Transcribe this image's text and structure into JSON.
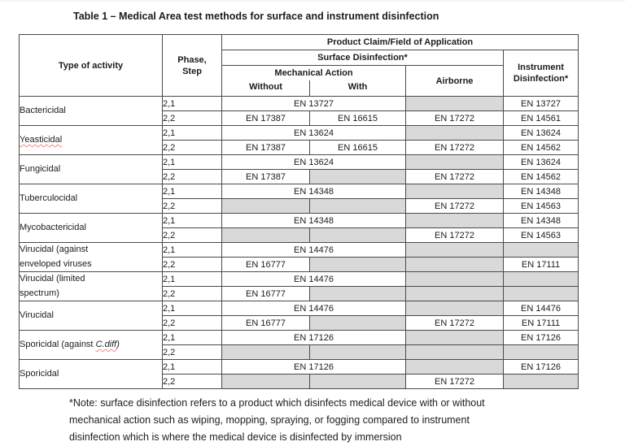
{
  "page": {
    "title": "Table 1 – Medical Area test methods for surface and instrument disinfection"
  },
  "colors": {
    "shaded_cell": "#d9d9d9",
    "border": "#4a4a4a",
    "squiggle": "#f08a7e"
  },
  "header": {
    "type_of_activity": "Type of activity",
    "phase_line1": "Phase,",
    "phase_line2": "Step",
    "product_claim": "Product Claim/Field of Application",
    "surface": "Surface Disinfection*",
    "mechanical": "Mechanical Action",
    "without": "Without",
    "with": "With",
    "airborne": "Airborne",
    "instrument_line1": "Instrument",
    "instrument_line2": "Disinfection*"
  },
  "groups": [
    {
      "activity": [
        [
          {
            "t": "Bactericidal"
          }
        ]
      ],
      "rows": [
        {
          "phase": "2,1",
          "cells": [
            {
              "t": "EN 13727",
              "span": 2
            },
            {
              "sh": true
            },
            {
              "t": "EN 13727"
            }
          ]
        },
        {
          "phase": "2,2",
          "cells": [
            {
              "t": "EN 17387"
            },
            {
              "t": "EN 16615"
            },
            {
              "t": "EN 17272"
            },
            {
              "t": "EN 14561"
            }
          ]
        }
      ]
    },
    {
      "activity": [
        [
          {
            "t": "Yeasticidal",
            "squiggle": true
          }
        ]
      ],
      "rows": [
        {
          "phase": "2,1",
          "cells": [
            {
              "t": "EN 13624",
              "span": 2
            },
            {
              "sh": true
            },
            {
              "t": "EN 13624"
            }
          ]
        },
        {
          "phase": "2,2",
          "cells": [
            {
              "t": "EN 17387"
            },
            {
              "t": "EN 16615"
            },
            {
              "t": "EN 17272"
            },
            {
              "t": "EN 14562"
            }
          ]
        }
      ]
    },
    {
      "activity": [
        [
          {
            "t": "Fungicidal"
          }
        ]
      ],
      "rows": [
        {
          "phase": "2,1",
          "cells": [
            {
              "t": "EN 13624",
              "span": 2
            },
            {
              "sh": true
            },
            {
              "t": "EN 13624"
            }
          ]
        },
        {
          "phase": "2,2",
          "cells": [
            {
              "t": "EN 17387"
            },
            {
              "sh": true
            },
            {
              "t": "EN 17272"
            },
            {
              "t": "EN 14562"
            }
          ]
        }
      ]
    },
    {
      "activity": [
        [
          {
            "t": "Tuberculocidal"
          }
        ]
      ],
      "rows": [
        {
          "phase": "2,1",
          "cells": [
            {
              "t": "EN 14348",
              "span": 2
            },
            {
              "sh": true
            },
            {
              "t": "EN 14348"
            }
          ]
        },
        {
          "phase": "2,2",
          "cells": [
            {
              "sh": true
            },
            {
              "sh": true
            },
            {
              "t": "EN 17272"
            },
            {
              "t": "EN 14563"
            }
          ]
        }
      ]
    },
    {
      "activity": [
        [
          {
            "t": "Mycobactericidal"
          }
        ]
      ],
      "rows": [
        {
          "phase": "2,1",
          "cells": [
            {
              "t": "EN 14348",
              "span": 2
            },
            {
              "sh": true
            },
            {
              "t": "EN 14348"
            }
          ]
        },
        {
          "phase": "2,2",
          "cells": [
            {
              "sh": true
            },
            {
              "sh": true
            },
            {
              "t": "EN 17272"
            },
            {
              "t": "EN 14563"
            }
          ]
        }
      ]
    },
    {
      "activity": [
        [
          {
            "t": "Virucidal (against"
          }
        ],
        [
          {
            "t": "enveloped viruses"
          }
        ]
      ],
      "rows": [
        {
          "phase": "2,1",
          "cells": [
            {
              "t": "EN 14476",
              "span": 2
            },
            {
              "sh": true
            },
            {
              "sh": true
            }
          ]
        },
        {
          "phase": "2,2",
          "cells": [
            {
              "t": "EN 16777"
            },
            {
              "sh": true
            },
            {
              "sh": true
            },
            {
              "t": "EN 17111"
            }
          ]
        }
      ]
    },
    {
      "activity": [
        [
          {
            "t": "Virucidal (limited"
          }
        ],
        [
          {
            "t": "spectrum)"
          }
        ]
      ],
      "rows": [
        {
          "phase": "2,1",
          "cells": [
            {
              "t": "EN 14476",
              "span": 2
            },
            {
              "sh": true
            },
            {
              "sh": true
            }
          ]
        },
        {
          "phase": "2,2",
          "cells": [
            {
              "t": "EN 16777"
            },
            {
              "sh": true
            },
            {
              "sh": true
            },
            {
              "sh": true
            }
          ]
        }
      ]
    },
    {
      "activity": [
        [
          {
            "t": "Virucidal"
          }
        ]
      ],
      "rows": [
        {
          "phase": "2,1",
          "cells": [
            {
              "t": "EN 14476",
              "span": 2
            },
            {
              "sh": true
            },
            {
              "t": "EN 14476"
            }
          ]
        },
        {
          "phase": "2,2",
          "cells": [
            {
              "t": "EN 16777"
            },
            {
              "sh": true
            },
            {
              "t": "EN 17272"
            },
            {
              "t": "EN 17111"
            }
          ]
        }
      ]
    },
    {
      "activity": [
        [
          {
            "t": "Sporicidal (against "
          },
          {
            "t": "C.diff",
            "italic": true,
            "squiggle": true
          },
          {
            "t": ")",
            "italic": true
          }
        ]
      ],
      "rows": [
        {
          "phase": "2,1",
          "cells": [
            {
              "t": "EN 17126",
              "span": 2
            },
            {
              "sh": true
            },
            {
              "t": "EN 17126"
            }
          ]
        },
        {
          "phase": "2,2",
          "cells": [
            {
              "sh": true
            },
            {
              "sh": true
            },
            {
              "sh": true
            },
            {
              "sh": true
            }
          ]
        }
      ]
    },
    {
      "activity": [
        [
          {
            "t": "Sporicidal"
          }
        ]
      ],
      "rows": [
        {
          "phase": "2,1",
          "cells": [
            {
              "t": "EN 17126",
              "span": 2
            },
            {
              "sh": true
            },
            {
              "t": "EN 17126"
            }
          ]
        },
        {
          "phase": "2,2",
          "cells": [
            {
              "sh": true
            },
            {
              "sh": true
            },
            {
              "t": "EN 17272"
            },
            {
              "sh": true
            }
          ]
        }
      ]
    }
  ],
  "footnote_lines": [
    "*Note: surface disinfection refers to a product which disinfects medical device with or without",
    "mechanical action such as wiping, mopping, spraying, or fogging compared to instrument",
    "disinfection which is where the medical device is disinfected by immersion"
  ]
}
